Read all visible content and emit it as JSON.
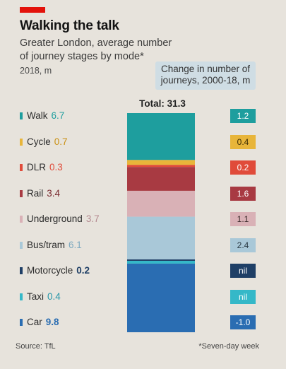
{
  "header": {
    "title": "Walking the talk",
    "subtitle": "Greater London, average number of journey stages by mode*",
    "units": "2018, m",
    "change_header": "Change in number of journeys, 2000-18, m",
    "total_label": "Total: 31.3"
  },
  "chart_data": {
    "type": "bar",
    "subtype": "stacked-single-column",
    "title": "Walking the talk",
    "subtitle": "Greater London, average number of journey stages by mode*",
    "unit": "2018, m",
    "total": 31.3,
    "categories": [
      "Walk",
      "Cycle",
      "DLR",
      "Rail",
      "Underground",
      "Bus/tram",
      "Motorcycle",
      "Taxi",
      "Car"
    ],
    "values": [
      6.7,
      0.7,
      0.3,
      3.4,
      3.7,
      6.1,
      0.2,
      0.4,
      9.8
    ],
    "value_labels": [
      "6.7",
      "0.7",
      "0.3",
      "3.4",
      "3.7",
      "6.1",
      "0.2",
      "0.4",
      "9.8"
    ],
    "change_2000_18": [
      "1.2",
      "0.4",
      "0.2",
      "1.6",
      "1.1",
      "2.4",
      "nil",
      "nil",
      "-1.0"
    ],
    "colors": [
      "#1e9e9e",
      "#e8b53a",
      "#e04b3a",
      "#a83a42",
      "#d9b1b6",
      "#a9c8d8",
      "#1f3f66",
      "#35b8c8",
      "#2a6db2"
    ],
    "change_colors": [
      "#1e9e9e",
      "#e8b53a",
      "#e04b3a",
      "#a83a42",
      "#d9b1b6",
      "#a9c8d8",
      "#1f3f66",
      "#35b8c8",
      "#2a6db2"
    ],
    "change_text_colors": [
      "#ffffff",
      "#3a2a00",
      "#ffffff",
      "#ffffff",
      "#3a2a2a",
      "#2a3a44",
      "#ffffff",
      "#ffffff",
      "#ffffff"
    ],
    "label_value_colors": [
      "#1e9e9e",
      "#c98f10",
      "#e04b3a",
      "#7a2b30",
      "#b48a90",
      "#7ea9bf",
      "#1f3f66",
      "#2496a8",
      "#2a6db2"
    ],
    "change_header": "Change in number of journeys, 2000-18, m"
  },
  "footer": {
    "source": "Source: TfL",
    "footnote": "*Seven-day week"
  }
}
